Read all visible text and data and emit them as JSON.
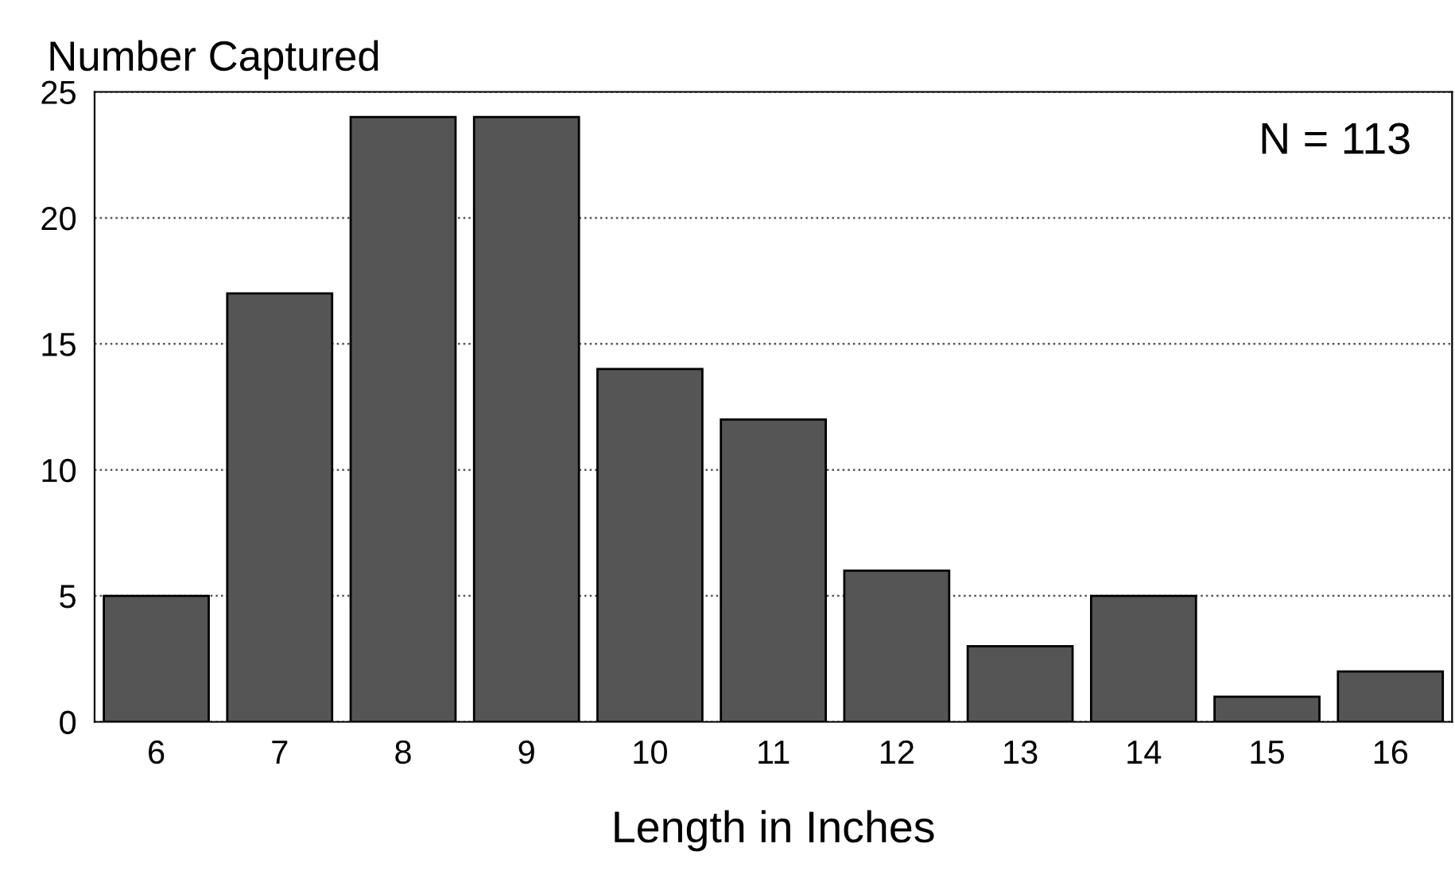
{
  "chart_data": {
    "type": "bar",
    "ylabel": "Number Captured",
    "xlabel": "Length in Inches",
    "categories": [
      "6",
      "7",
      "8",
      "9",
      "10",
      "11",
      "12",
      "13",
      "14",
      "15",
      "16"
    ],
    "values": [
      5,
      17,
      24,
      24,
      14,
      12,
      6,
      3,
      5,
      1,
      2
    ],
    "color": "#555555",
    "ylim": [
      0,
      25
    ],
    "yticks": [
      0,
      5,
      10,
      15,
      20,
      25
    ],
    "grid": "y",
    "annotations": [
      "N = 113"
    ]
  }
}
